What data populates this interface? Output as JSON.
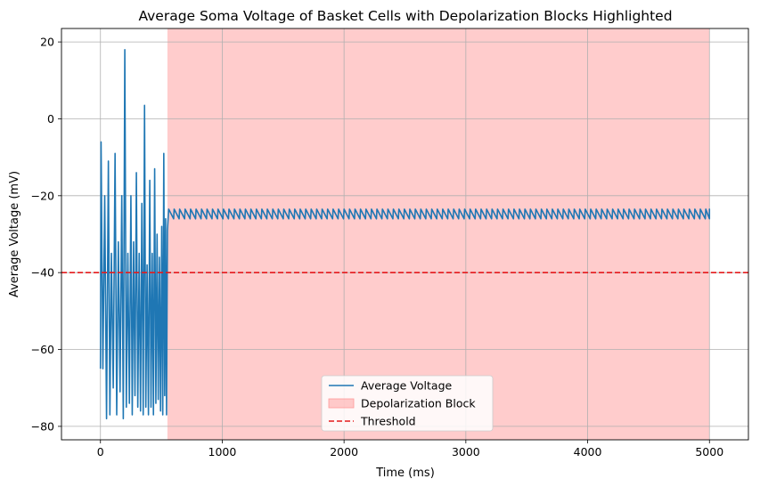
{
  "chart_data": {
    "type": "line",
    "title": "Average Soma Voltage of Basket Cells with Depolarization Blocks Highlighted",
    "xlabel": "Time (ms)",
    "ylabel": "Average Voltage (mV)",
    "xlim": [
      -320,
      5320
    ],
    "ylim": [
      -83.5,
      23.5
    ],
    "xticks": [
      0,
      1000,
      2000,
      3000,
      4000,
      5000
    ],
    "xtick_labels": [
      "0",
      "1000",
      "2000",
      "3000",
      "4000",
      "5000"
    ],
    "yticks": [
      -80,
      -60,
      -40,
      -20,
      0,
      20
    ],
    "ytick_labels": [
      "−80",
      "−60",
      "−40",
      "−20",
      "0",
      "20"
    ],
    "grid": true,
    "legend_position": "lower-center",
    "series": [
      {
        "name": "Average Voltage",
        "color": "#1f77b4",
        "style": "line",
        "early_spikes": {
          "t": [
            5,
            35,
            65,
            90,
            120,
            147,
            175,
            200,
            225,
            250,
            272,
            295,
            318,
            340,
            362,
            383,
            405,
            425,
            445,
            465,
            484,
            503,
            520,
            535
          ],
          "peak": [
            -6,
            -20,
            -11,
            -35,
            -9,
            -32,
            -20,
            18,
            -35,
            -20,
            -32,
            -14,
            -35,
            -22,
            3.5,
            -38,
            -16,
            -35,
            -13,
            -30,
            -36,
            -28,
            -9,
            -26
          ],
          "trough": [
            -65,
            -78,
            -77,
            -70,
            -77,
            -71,
            -78,
            -75,
            -74,
            -77,
            -72,
            -75,
            -76,
            -77,
            -75,
            -77,
            -75,
            -77,
            -74,
            -73,
            -76,
            -77,
            -72,
            -77
          ]
        },
        "sustained": {
          "t_start": 550,
          "t_end": 5000,
          "period_ms": 45,
          "min_mV": -26,
          "max_mV": -23.5
        }
      },
      {
        "name": "Depolarization Block",
        "type": "shaded-span",
        "color": "#ff9999",
        "x_start": 550,
        "x_end": 5000
      },
      {
        "name": "Threshold",
        "type": "hline",
        "color": "#e41a1c",
        "style": "dashed",
        "y": -40
      }
    ]
  }
}
